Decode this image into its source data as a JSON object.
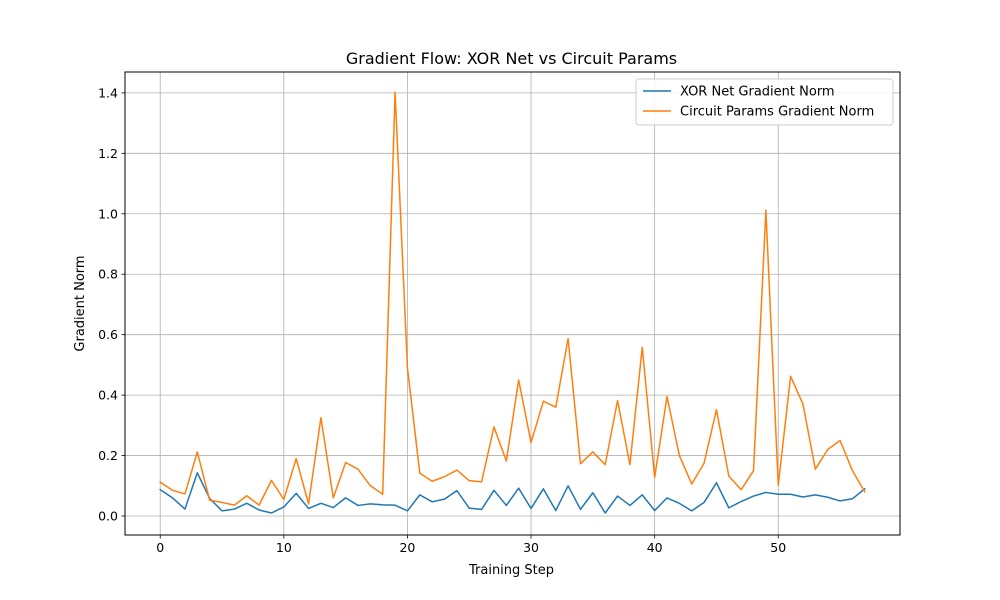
{
  "chart_data": {
    "type": "line",
    "title": "Gradient Flow: XOR Net vs Circuit Params",
    "xlabel": "Training Step",
    "ylabel": "Gradient Norm",
    "xlim": [
      -2.85,
      59.85
    ],
    "ylim": [
      -0.0628,
      1.4691
    ],
    "xticks": [
      0,
      10,
      20,
      30,
      40,
      50
    ],
    "yticks": [
      0.0,
      0.2,
      0.4,
      0.6,
      0.8,
      1.0,
      1.2,
      1.4
    ],
    "grid": true,
    "legend_position": "top-right",
    "x": [
      0,
      1,
      2,
      3,
      4,
      5,
      6,
      7,
      8,
      9,
      10,
      11,
      12,
      13,
      14,
      15,
      16,
      17,
      18,
      19,
      20,
      21,
      22,
      23,
      24,
      25,
      26,
      27,
      28,
      29,
      30,
      31,
      32,
      33,
      34,
      35,
      36,
      37,
      38,
      39,
      40,
      41,
      42,
      43,
      44,
      45,
      46,
      47,
      48,
      49,
      50,
      51,
      52,
      53,
      54,
      55,
      56,
      57
    ],
    "series": [
      {
        "name": "XOR Net Gradient Norm",
        "color": "#1f77b4",
        "values": [
          0.087,
          0.06,
          0.023,
          0.143,
          0.058,
          0.017,
          0.023,
          0.042,
          0.02,
          0.01,
          0.03,
          0.075,
          0.025,
          0.042,
          0.028,
          0.06,
          0.035,
          0.04,
          0.037,
          0.036,
          0.017,
          0.07,
          0.047,
          0.056,
          0.084,
          0.026,
          0.022,
          0.085,
          0.035,
          0.092,
          0.025,
          0.09,
          0.018,
          0.1,
          0.022,
          0.077,
          0.01,
          0.066,
          0.035,
          0.07,
          0.018,
          0.06,
          0.042,
          0.017,
          0.045,
          0.11,
          0.027,
          0.048,
          0.066,
          0.078,
          0.072,
          0.072,
          0.063,
          0.07,
          0.062,
          0.05,
          0.057,
          0.09
        ]
      },
      {
        "name": "Circuit Params Gradient Norm",
        "color": "#ff7f0e",
        "values": [
          0.112,
          0.085,
          0.073,
          0.212,
          0.052,
          0.045,
          0.036,
          0.067,
          0.036,
          0.118,
          0.055,
          0.19,
          0.04,
          0.325,
          0.06,
          0.177,
          0.155,
          0.1,
          0.072,
          1.402,
          0.49,
          0.142,
          0.115,
          0.13,
          0.152,
          0.117,
          0.113,
          0.295,
          0.182,
          0.45,
          0.243,
          0.38,
          0.36,
          0.587,
          0.173,
          0.212,
          0.17,
          0.382,
          0.17,
          0.558,
          0.128,
          0.395,
          0.2,
          0.106,
          0.175,
          0.352,
          0.132,
          0.087,
          0.15,
          1.012,
          0.102,
          0.462,
          0.37,
          0.155,
          0.22,
          0.25,
          0.15,
          0.08
        ]
      }
    ]
  }
}
